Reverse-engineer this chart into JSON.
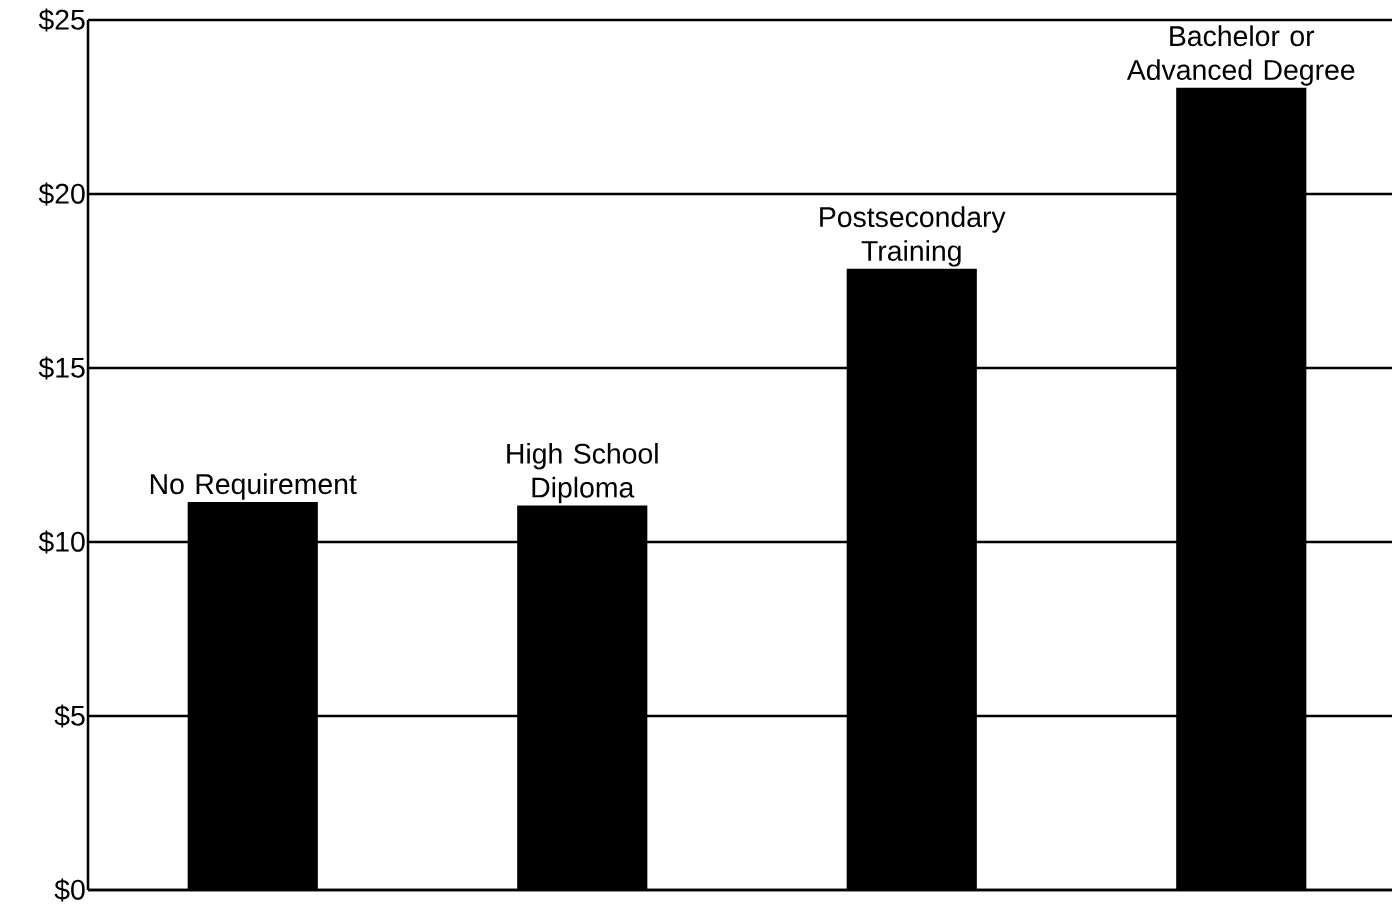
{
  "chart_data": {
    "type": "bar",
    "categories": [
      "No Requirement",
      "High School Diploma",
      "Postsecondary Training",
      "Bachelor or Advanced Degree"
    ],
    "values": [
      11.15,
      11.05,
      17.85,
      23.05
    ],
    "color": "#000000",
    "ylim": [
      0,
      25
    ],
    "yticks": [
      {
        "value": 0,
        "label": "$0"
      },
      {
        "value": 5,
        "label": "$5"
      },
      {
        "value": 10,
        "label": "$10"
      },
      {
        "value": 15,
        "label": "$15"
      },
      {
        "value": 20,
        "label": "$20"
      },
      {
        "value": 25,
        "label": "$25"
      }
    ],
    "grid": "y"
  }
}
